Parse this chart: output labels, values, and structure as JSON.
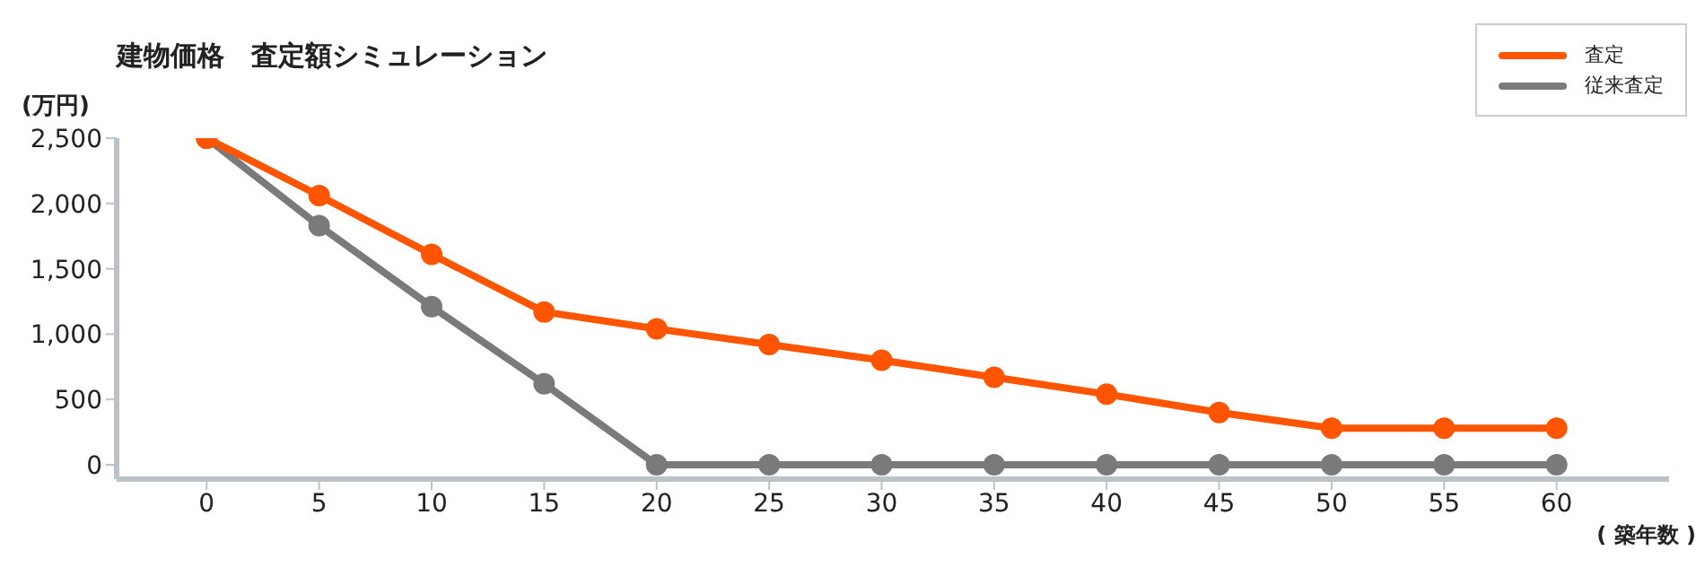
{
  "chart_data": {
    "type": "line",
    "title": "建物価格　査定額シミュレーション",
    "ylabel": "(万円)",
    "xlabel": "( 築年数 )",
    "x": [
      0,
      5,
      10,
      15,
      20,
      25,
      30,
      35,
      40,
      45,
      50,
      55,
      60
    ],
    "series": [
      {
        "name": "査定",
        "color": "#ff5500",
        "values": [
          2500,
          2060,
          1610,
          1170,
          1040,
          920,
          800,
          670,
          540,
          400,
          280,
          280,
          280
        ]
      },
      {
        "name": "従来査定",
        "color": "#7a7a7a",
        "values": [
          2500,
          1830,
          1210,
          620,
          0,
          0,
          0,
          0,
          0,
          0,
          0,
          0,
          0
        ]
      }
    ],
    "xlim": [
      -4,
      65
    ],
    "xticks": [
      0,
      5,
      10,
      15,
      20,
      25,
      30,
      35,
      40,
      45,
      50,
      55,
      60
    ],
    "ylim": [
      -110,
      2500
    ],
    "yticks": [
      0,
      500,
      {
        "value": 1000,
        "label": "1,000"
      },
      {
        "value": 1500,
        "label": "1,500"
      },
      {
        "value": 2000,
        "label": "2,000"
      },
      {
        "value": 2500,
        "label": "2,500"
      }
    ],
    "grid": false,
    "legend": "top right",
    "marker": "circle",
    "line_style": "solid"
  }
}
